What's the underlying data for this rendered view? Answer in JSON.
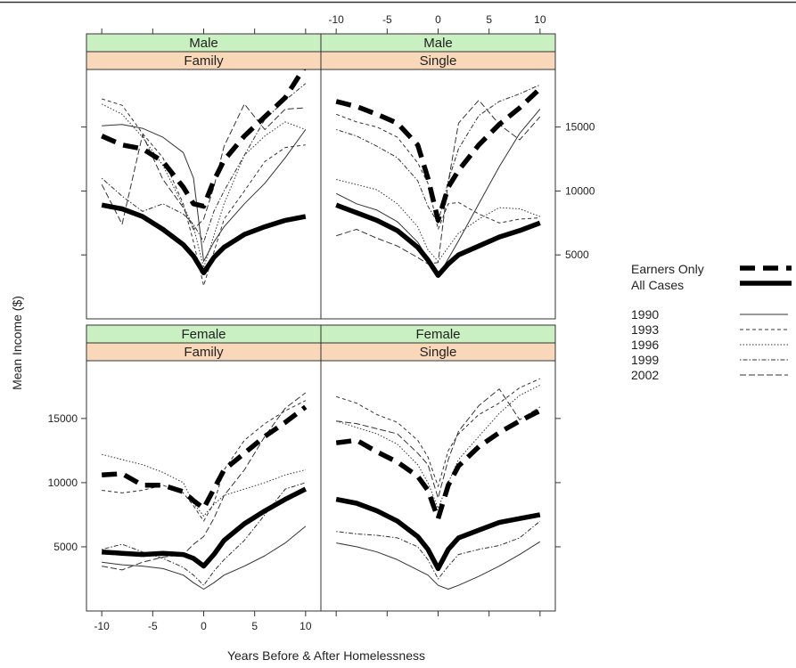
{
  "chart_data": {
    "type": "line",
    "xlabel": "Years Before & After Homelessness",
    "ylabel": "Mean Income ($)",
    "x_ticks": [
      "-10",
      "-5",
      "0",
      "5",
      "10"
    ],
    "y_ticks": [
      "5000",
      "10000",
      "15000"
    ],
    "xlim": [
      -11.5,
      11.5
    ],
    "ylim": [
      0,
      19500
    ],
    "legend": {
      "aggregate": [
        {
          "label": "Earners Only",
          "style": "thick-dashed"
        },
        {
          "label": "All Cases",
          "style": "thick-solid"
        }
      ],
      "years": [
        {
          "label": "1990",
          "style": "solid"
        },
        {
          "label": "1993",
          "style": "dashed"
        },
        {
          "label": "1996",
          "style": "dotted"
        },
        {
          "label": "1999",
          "style": "dash-dot"
        },
        {
          "label": "2002",
          "style": "long-dash"
        }
      ]
    },
    "x": [
      -10,
      -8,
      -6,
      -4,
      -2,
      -1,
      0,
      1,
      2,
      4,
      6,
      8,
      10
    ],
    "panels": [
      {
        "strip_top": "Male",
        "strip_bottom": "Family",
        "series": [
          {
            "style": "thick-dashed",
            "values": [
              14300,
              13600,
              13300,
              12300,
              10300,
              9000,
              8800,
              10800,
              12400,
              14300,
              15800,
              17300,
              19800
            ]
          },
          {
            "style": "thick-solid",
            "values": [
              8900,
              8600,
              8000,
              7000,
              5800,
              4900,
              3600,
              4800,
              5600,
              6600,
              7200,
              7700,
              8000
            ]
          },
          {
            "style": "solid",
            "values": [
              15100,
              15200,
              14900,
              14200,
              13000,
              11000,
              4500,
              6000,
              7200,
              9000,
              10600,
              12600,
              14800
            ]
          },
          {
            "style": "dashed",
            "values": [
              17200,
              16700,
              14500,
              12600,
              9000,
              6000,
              2600,
              5200,
              7800,
              10000,
              12300,
              13400,
              13600
            ]
          },
          {
            "style": "dotted",
            "values": [
              16800,
              16000,
              14200,
              12000,
              8800,
              7200,
              4000,
              6500,
              9000,
              12800,
              14300,
              15400,
              14800
            ]
          },
          {
            "style": "dash-dot",
            "values": [
              11000,
              9600,
              8400,
              9000,
              8200,
              7400,
              6000,
              8400,
              10000,
              12800,
              15600,
              17100,
              18400
            ]
          },
          {
            "style": "long-dash",
            "values": [
              10500,
              7400,
              14400,
              10900,
              8700,
              7000,
              7800,
              10300,
              13500,
              16800,
              14800,
              16400,
              16500
            ]
          }
        ]
      },
      {
        "strip_top": "Male",
        "strip_bottom": "Single",
        "series": [
          {
            "style": "thick-dashed",
            "values": [
              17000,
              16600,
              16000,
              15300,
              13600,
              11000,
              7700,
              10300,
              11600,
              13600,
              15200,
              16500,
              18000
            ]
          },
          {
            "style": "thick-solid",
            "values": [
              8900,
              8300,
              7700,
              6900,
              5600,
              4600,
              3400,
              4300,
              5000,
              5700,
              6400,
              6900,
              7500
            ]
          },
          {
            "style": "solid",
            "values": [
              9800,
              9000,
              8500,
              7600,
              6000,
              4700,
              3300,
              4700,
              6100,
              9000,
              11900,
              14500,
              16400
            ]
          },
          {
            "style": "dashed",
            "values": [
              16000,
              15400,
              15000,
              14200,
              12200,
              10600,
              7000,
              9000,
              9100,
              8200,
              7500,
              7800,
              7900
            ]
          },
          {
            "style": "dotted",
            "values": [
              10900,
              10500,
              10100,
              9000,
              7200,
              5400,
              4500,
              5600,
              6700,
              7800,
              8700,
              8600,
              8000
            ]
          },
          {
            "style": "dash-dot",
            "values": [
              14800,
              14300,
              13500,
              12600,
              10800,
              8800,
              7500,
              10800,
              13300,
              15900,
              17000,
              17600,
              18300
            ]
          },
          {
            "style": "long-dash",
            "values": [
              6500,
              7000,
              6300,
              5700,
              4800,
              4300,
              4400,
              10700,
              15300,
              17100,
              15200,
              14000,
              15800
            ]
          }
        ]
      },
      {
        "strip_top": "Female",
        "strip_bottom": "Family",
        "series": [
          {
            "style": "thick-dashed",
            "values": [
              10600,
              10700,
              9800,
              9800,
              9300,
              8600,
              8000,
              9500,
              11000,
              12300,
              13600,
              14700,
              15900
            ]
          },
          {
            "style": "thick-solid",
            "values": [
              4600,
              4500,
              4400,
              4500,
              4400,
              4100,
              3500,
              4400,
              5500,
              6800,
              7800,
              8700,
              9500
            ]
          },
          {
            "style": "solid",
            "values": [
              3800,
              3600,
              3500,
              3300,
              2800,
              2200,
              1700,
              2200,
              2800,
              3500,
              4300,
              5300,
              6600
            ]
          },
          {
            "style": "dashed",
            "values": [
              9400,
              9200,
              9400,
              9800,
              9200,
              8200,
              7000,
              8400,
              11000,
              13300,
              14600,
              15600,
              16400
            ]
          },
          {
            "style": "dotted",
            "values": [
              12200,
              11800,
              11400,
              10800,
              10000,
              8400,
              7400,
              8300,
              9000,
              9500,
              10000,
              10600,
              11000
            ]
          },
          {
            "style": "dash-dot",
            "values": [
              4800,
              5200,
              4600,
              4100,
              3400,
              2800,
              2000,
              3100,
              4000,
              5500,
              7500,
              9500,
              10000
            ]
          },
          {
            "style": "long-dash",
            "values": [
              3500,
              3200,
              3800,
              4200,
              4400,
              5200,
              5800,
              7200,
              9000,
              11000,
              13600,
              15800,
              17000
            ]
          }
        ]
      },
      {
        "strip_top": "Female",
        "strip_bottom": "Single",
        "series": [
          {
            "style": "thick-dashed",
            "values": [
              13100,
              13300,
              12400,
              11600,
              10500,
              9400,
              7200,
              9800,
              11300,
              12800,
              13900,
              14800,
              15600
            ]
          },
          {
            "style": "thick-solid",
            "values": [
              8700,
              8400,
              7800,
              7000,
              5800,
              4800,
              3300,
              4800,
              5700,
              6300,
              6900,
              7200,
              7500
            ]
          },
          {
            "style": "solid",
            "values": [
              5300,
              5000,
              4600,
              4000,
              3200,
              2800,
              2000,
              1700,
              2000,
              2700,
              3500,
              4400,
              5400
            ]
          },
          {
            "style": "dashed",
            "values": [
              16700,
              16200,
              15300,
              14700,
              13300,
              12000,
              9700,
              12500,
              13800,
              15300,
              16200,
              17400,
              18100
            ]
          },
          {
            "style": "dotted",
            "values": [
              14800,
              14300,
              13800,
              13000,
              11400,
              10000,
              8000,
              10000,
              11800,
              13600,
              15400,
              16800,
              17600
            ]
          },
          {
            "style": "dash-dot",
            "values": [
              6200,
              6000,
              5900,
              5700,
              5000,
              4000,
              2500,
              3500,
              4400,
              4800,
              5100,
              5700,
              7000
            ]
          },
          {
            "style": "long-dash",
            "values": [
              14800,
              14600,
              14200,
              13800,
              12300,
              11400,
              8800,
              11800,
              14000,
              16000,
              17300,
              14900,
              15900
            ]
          }
        ]
      }
    ]
  }
}
